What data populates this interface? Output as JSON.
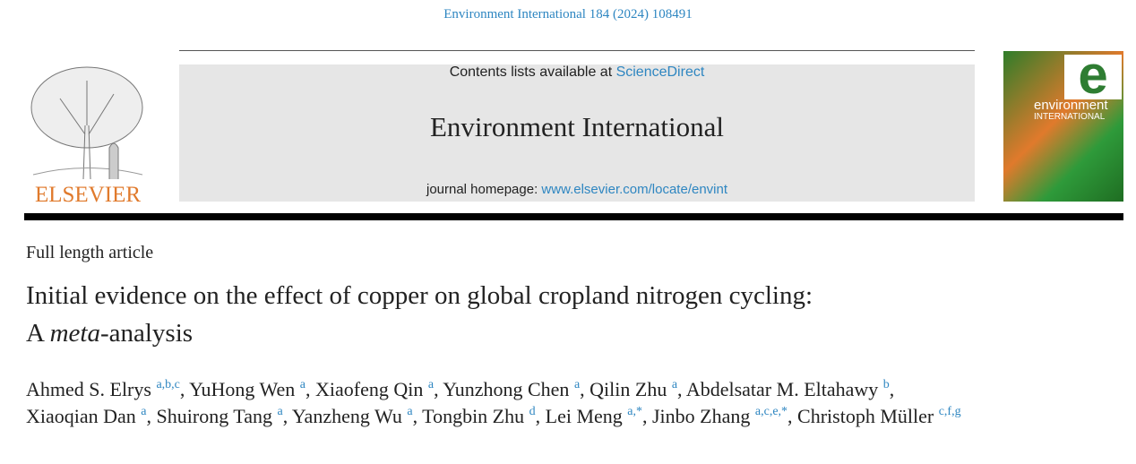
{
  "header": {
    "citation": "Environment International 184 (2024) 108491",
    "contents_prefix": "Contents lists available at ",
    "contents_link": "ScienceDirect",
    "journal": "Environment International",
    "homepage_prefix": "journal homepage: ",
    "homepage_link": "www.elsevier.com/locate/envint",
    "publisher": "ELSEVIER",
    "cover": {
      "letter": "e",
      "word1": "environment",
      "word2": "INTERNATIONAL"
    }
  },
  "article": {
    "type": "Full length article",
    "title": {
      "line1": "Initial evidence on the effect of copper on global cropland nitrogen cycling:",
      "line2": [
        "A ",
        "meta",
        "-analysis"
      ]
    },
    "separator": ",",
    "authors": [
      {
        "name": "Ahmed S. Elrys",
        "aff": "a,b,c"
      },
      {
        "name": "YuHong Wen",
        "aff": "a"
      },
      {
        "name": "Xiaofeng Qin",
        "aff": "a"
      },
      {
        "name": "Yunzhong Chen",
        "aff": "a"
      },
      {
        "name": "Qilin Zhu",
        "aff": "a"
      },
      {
        "name": "Abdelsatar M. Eltahawy",
        "aff": "b"
      },
      {
        "name": "Xiaoqian Dan",
        "aff": "a"
      },
      {
        "name": "Shuirong Tang",
        "aff": "a"
      },
      {
        "name": "Yanzheng Wu",
        "aff": "a"
      },
      {
        "name": "Tongbin Zhu",
        "aff": "d"
      },
      {
        "name": "Lei Meng",
        "aff": "a,*"
      },
      {
        "name": "Jinbo Zhang",
        "aff": "a,c,e,*"
      },
      {
        "name": "Christoph Müller",
        "aff": "c,f,g"
      }
    ]
  }
}
